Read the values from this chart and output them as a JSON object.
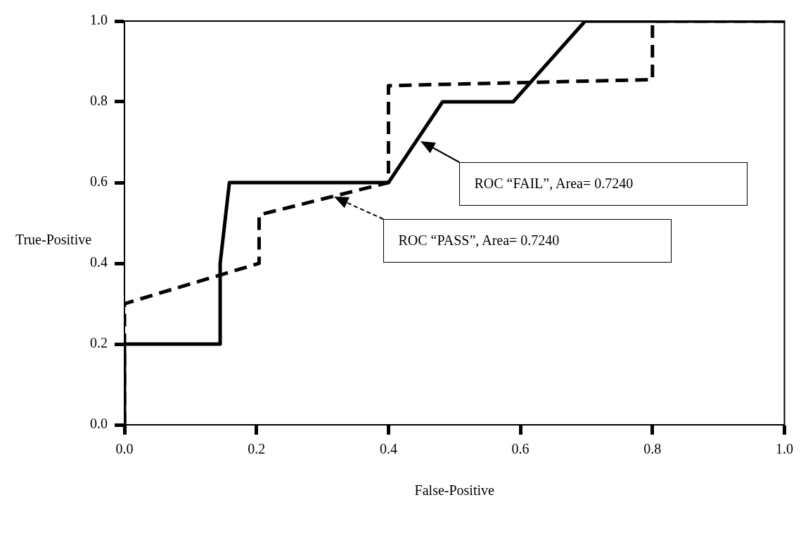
{
  "chart_data": {
    "type": "line",
    "xlabel": "False-Positive",
    "ylabel": "True-Positive",
    "xlim": [
      0,
      1
    ],
    "ylim": [
      0,
      1
    ],
    "xticks": [
      {
        "value": 0,
        "label": "0.0"
      },
      0.2,
      0.4,
      0.6,
      0.8,
      {
        "value": 1,
        "label": "1.0"
      }
    ],
    "yticks": [
      {
        "value": 0,
        "label": "0.0"
      },
      0.2,
      0.4,
      0.6,
      0.8,
      {
        "value": 1,
        "label": "1.0"
      }
    ],
    "grid": false,
    "legend": false,
    "marker": "none",
    "series": [
      {
        "color": "#000000",
        "line_style": "solid",
        "x": [
          0,
          0,
          0.145,
          0.145,
          0.159,
          0.4,
          0.482,
          0.589,
          0.698,
          1.0
        ],
        "values": [
          0,
          0.2,
          0.2,
          0.4,
          0.6,
          0.6,
          0.8,
          0.8,
          1.0,
          1.0
        ]
      },
      {
        "color": "#000000",
        "line_style": "dashed",
        "x": [
          0,
          0,
          0.204,
          0.204,
          0.4,
          0.4,
          0.8,
          0.8,
          1.0
        ],
        "values": [
          0,
          0.3,
          0.4,
          0.52,
          0.6,
          0.84,
          0.855,
          1.0,
          1.0
        ]
      }
    ],
    "annotations": [
      "ROC “FAIL”, Area= 0.7240",
      "ROC “PASS”, Area= 0.7240"
    ]
  }
}
